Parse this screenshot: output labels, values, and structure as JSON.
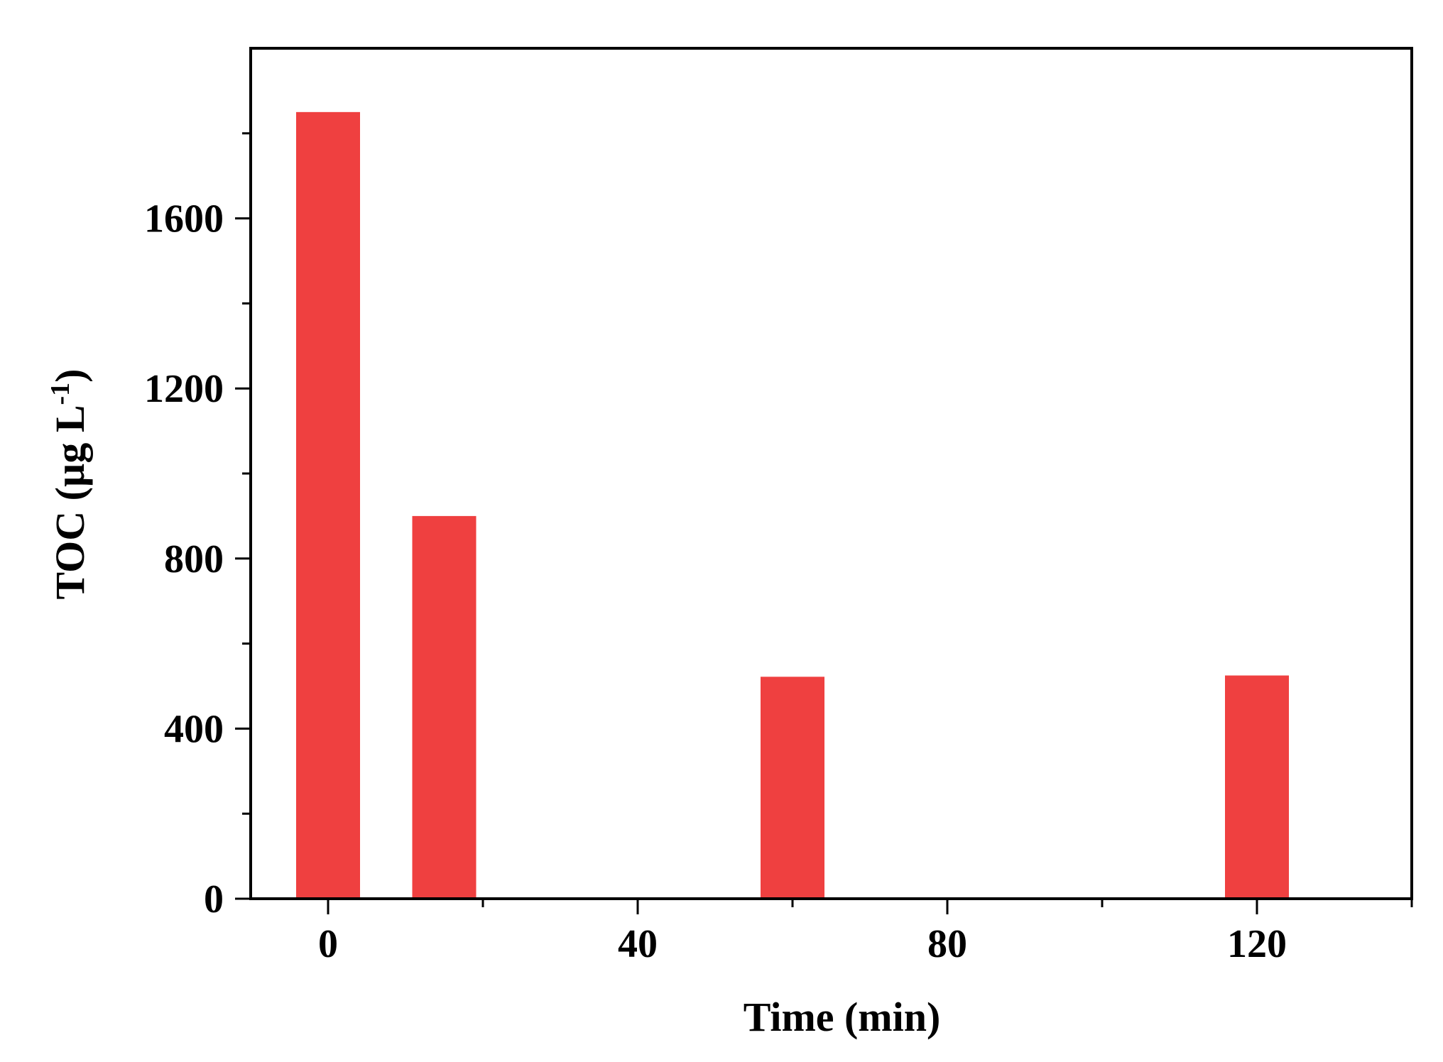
{
  "chart_data": {
    "type": "bar",
    "x": [
      0,
      15,
      60,
      120
    ],
    "values": [
      1850,
      900,
      522,
      525
    ],
    "xlabel": "Time (min)",
    "ylabel_main": "TOC (µg L",
    "ylabel_sup": "-1",
    "ylabel_close": ")",
    "xlim": [
      -10,
      140
    ],
    "ylim": [
      0,
      2000
    ],
    "x_ticks": [
      0,
      40,
      80,
      120
    ],
    "x_minor_ticks": [
      20,
      60,
      100,
      140
    ],
    "x_tick_labels": [
      "0",
      "40",
      "80",
      "120"
    ],
    "y_ticks": [
      0,
      400,
      800,
      1200,
      1600
    ],
    "y_minor_ticks": [
      200,
      600,
      1000,
      1400,
      1800
    ],
    "y_tick_labels": [
      "0",
      "400",
      "800",
      "1200",
      "1600"
    ],
    "bar_color": "#EF4040",
    "grid": false,
    "legend": "none"
  }
}
